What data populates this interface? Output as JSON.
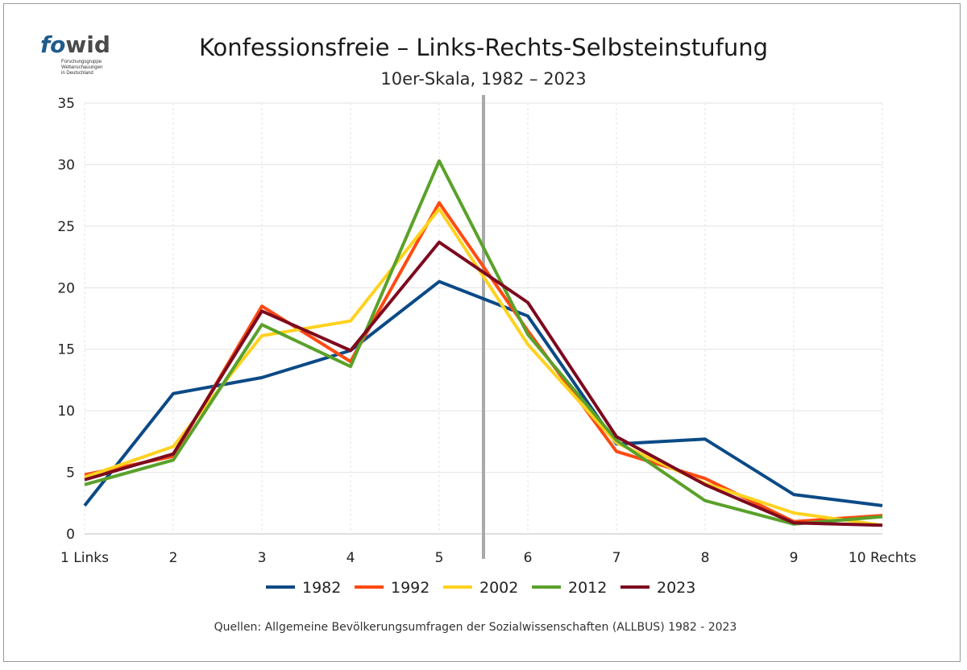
{
  "logo": {
    "mark_a": "fo",
    "mark_b": "wid",
    "line1": "Forschungsgruppe",
    "line2": "Weltanschauungen",
    "line3": "in Deutschland"
  },
  "source_note": "Quellen: Allgemeine Bevölkerungsumfragen der Sozialwissenschaften (ALLBUS) 1982 - 2023",
  "chart_data": {
    "type": "line",
    "title": "Konfessionsfreie – Links-Rechts-Selbsteinstufung",
    "subtitle": "10er-Skala, 1982 – 2023",
    "xlabel": "",
    "ylabel": "",
    "categories": [
      "1 Links",
      "2",
      "3",
      "4",
      "5",
      "6",
      "7",
      "8",
      "9",
      "10 Rechts"
    ],
    "ylim": [
      0,
      35
    ],
    "yticks": [
      0,
      5,
      10,
      15,
      20,
      25,
      30,
      35
    ],
    "grid": true,
    "legend_position": "bottom",
    "divider_between": [
      5,
      6
    ],
    "series": [
      {
        "name": "1982",
        "color": "#0b4a86",
        "values": [
          2.3,
          11.4,
          12.7,
          14.9,
          20.5,
          17.7,
          7.3,
          7.7,
          3.2,
          2.3
        ]
      },
      {
        "name": "1992",
        "color": "#ff4a12",
        "values": [
          4.8,
          6.3,
          18.5,
          14.0,
          26.9,
          16.5,
          6.7,
          4.5,
          1.0,
          1.5
        ]
      },
      {
        "name": "2002",
        "color": "#ffd21f",
        "values": [
          4.6,
          7.1,
          16.1,
          17.3,
          26.4,
          15.4,
          7.4,
          4.1,
          1.7,
          0.7
        ]
      },
      {
        "name": "2012",
        "color": "#5aa12a",
        "values": [
          4.0,
          6.0,
          17.0,
          13.6,
          30.3,
          16.2,
          7.6,
          2.7,
          0.8,
          1.4
        ]
      },
      {
        "name": "2023",
        "color": "#7d0a1f",
        "values": [
          4.4,
          6.5,
          18.1,
          14.9,
          23.7,
          18.8,
          7.9,
          4.0,
          0.9,
          0.7
        ]
      }
    ]
  }
}
